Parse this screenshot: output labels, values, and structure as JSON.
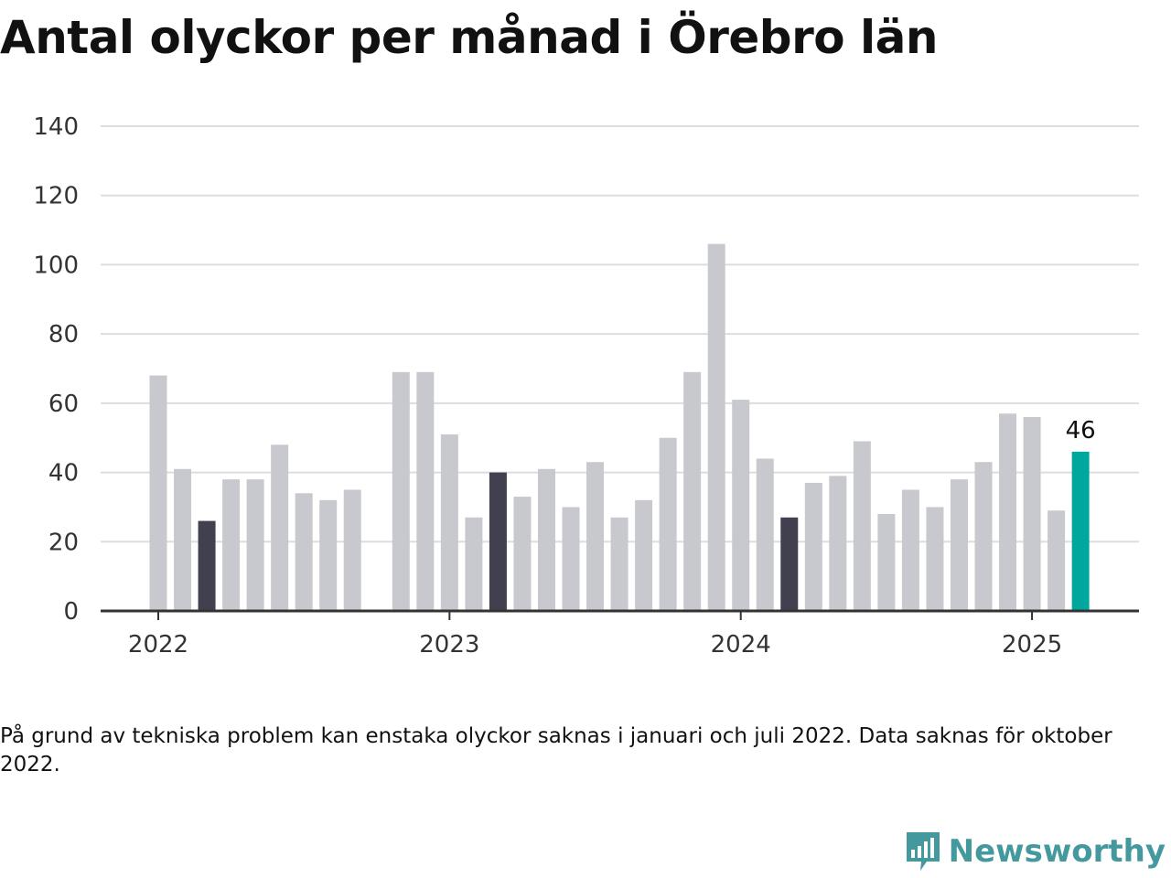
{
  "title": "Antal olyckor per månad i Örebro län",
  "note": "På grund av tekniska problem kan enstaka olyckor saknas i januari och juli 2022. Data saknas för oktober 2022.",
  "brand": {
    "name": "Newsworthy",
    "icon": "newsworthy-logo-icon",
    "color": "#44999f"
  },
  "chart_data": {
    "type": "bar",
    "title": "Antal olyckor per månad i Örebro län",
    "xlabel": "",
    "ylabel": "",
    "ylim": [
      0,
      140
    ],
    "yticks": [
      0,
      20,
      40,
      60,
      80,
      100,
      120,
      140
    ],
    "grid": true,
    "legend": "none",
    "x_tick_labels": [
      {
        "label": "2022",
        "month": "2022-01"
      },
      {
        "label": "2023",
        "month": "2023-01"
      },
      {
        "label": "2024",
        "month": "2024-01"
      },
      {
        "label": "2025",
        "month": "2025-01"
      }
    ],
    "colors": {
      "default": "#c8c8cf",
      "highlight_march": "#40404f",
      "latest": "#00a79d",
      "axis": "#333333",
      "grid": "#dddddd"
    },
    "categories": [
      "2022-01",
      "2022-02",
      "2022-03",
      "2022-04",
      "2022-05",
      "2022-06",
      "2022-07",
      "2022-08",
      "2022-09",
      "2022-10",
      "2022-11",
      "2022-12",
      "2023-01",
      "2023-02",
      "2023-03",
      "2023-04",
      "2023-05",
      "2023-06",
      "2023-07",
      "2023-08",
      "2023-09",
      "2023-10",
      "2023-11",
      "2023-12",
      "2024-01",
      "2024-02",
      "2024-03",
      "2024-04",
      "2024-05",
      "2024-06",
      "2024-07",
      "2024-08",
      "2024-09",
      "2024-10",
      "2024-11",
      "2024-12",
      "2025-01",
      "2025-02",
      "2025-03"
    ],
    "values": [
      68,
      41,
      26,
      38,
      38,
      48,
      34,
      32,
      35,
      null,
      69,
      69,
      51,
      27,
      40,
      33,
      41,
      30,
      43,
      27,
      32,
      50,
      69,
      106,
      61,
      44,
      27,
      37,
      39,
      49,
      28,
      35,
      30,
      38,
      43,
      57,
      56,
      29,
      46
    ],
    "dark_months": [
      "2022-03",
      "2023-03",
      "2024-03"
    ],
    "latest_month": "2025-03",
    "data_labels": [
      {
        "month": "2025-03",
        "text": "46"
      }
    ]
  }
}
